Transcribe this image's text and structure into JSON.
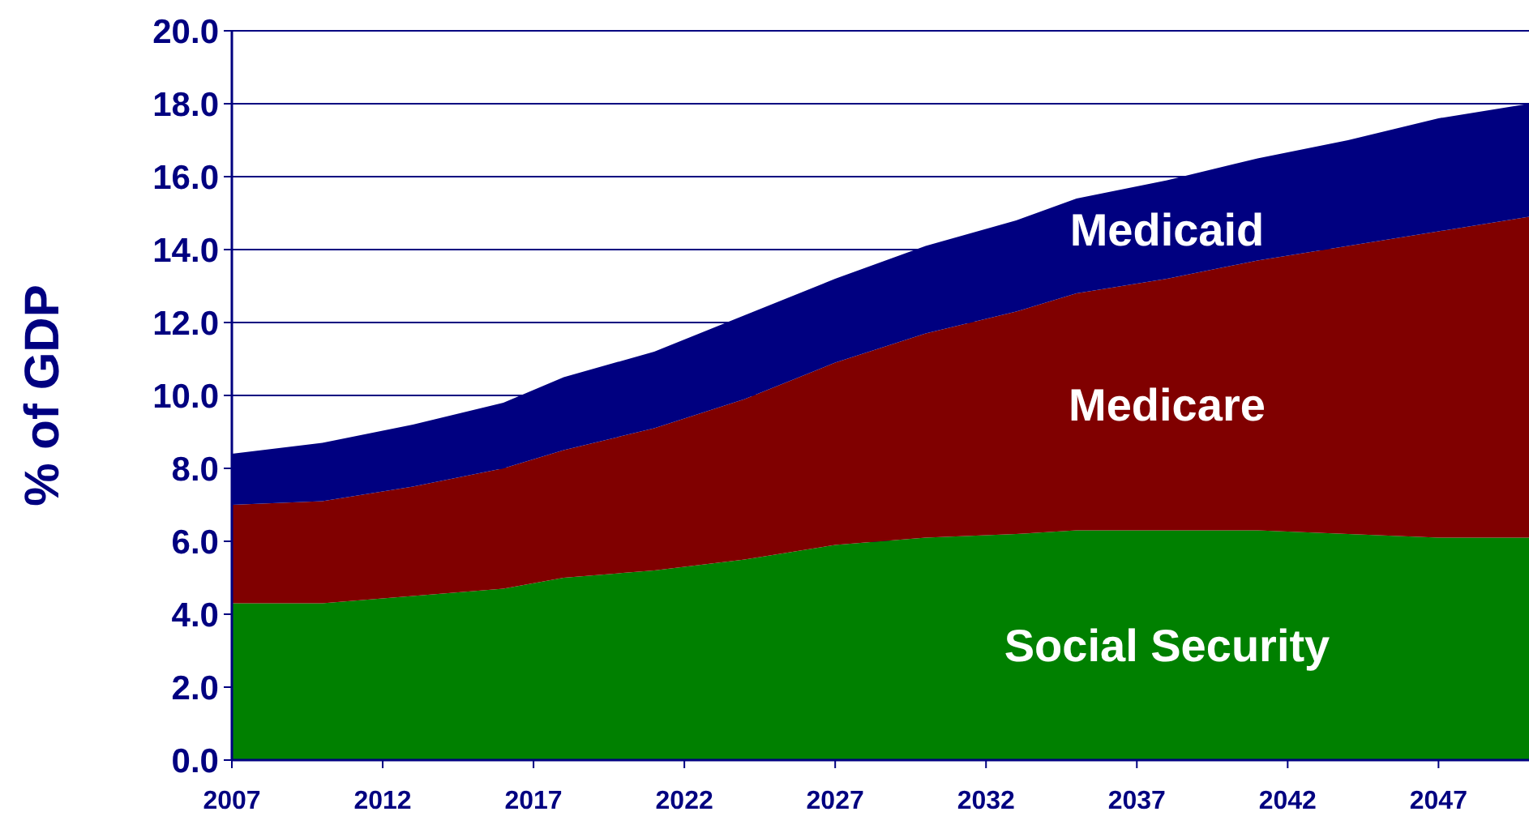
{
  "chart_data": {
    "type": "area",
    "stacked": true,
    "ylabel": "% of GDP",
    "x": [
      2007,
      2010,
      2013,
      2016,
      2018,
      2021,
      2024,
      2027,
      2030,
      2033,
      2035,
      2038,
      2041,
      2044,
      2047,
      2050
    ],
    "series": [
      {
        "name": "Social Security",
        "color": "#008000",
        "values": [
          4.3,
          4.3,
          4.5,
          4.7,
          5.0,
          5.2,
          5.5,
          5.9,
          6.1,
          6.2,
          6.3,
          6.3,
          6.3,
          6.2,
          6.1,
          6.1
        ]
      },
      {
        "name": "Medicare",
        "color": "#800000",
        "values": [
          2.7,
          2.8,
          3.0,
          3.3,
          3.5,
          3.9,
          4.4,
          5.0,
          5.6,
          6.1,
          6.5,
          6.9,
          7.4,
          7.9,
          8.4,
          8.8
        ]
      },
      {
        "name": "Medicaid",
        "color": "#000080",
        "values": [
          1.4,
          1.6,
          1.7,
          1.8,
          2.0,
          2.1,
          2.3,
          2.3,
          2.4,
          2.5,
          2.6,
          2.7,
          2.8,
          2.9,
          3.1,
          3.1
        ]
      }
    ],
    "xlim": [
      2007,
      2050
    ],
    "xticks": [
      2007,
      2012,
      2017,
      2022,
      2027,
      2032,
      2037,
      2042,
      2047
    ],
    "ylim": [
      0,
      20
    ],
    "yticks": [
      {
        "value": 0,
        "label": "0.0"
      },
      {
        "value": 2,
        "label": "2.0"
      },
      {
        "value": 4,
        "label": "4.0"
      },
      {
        "value": 6,
        "label": "6.0"
      },
      {
        "value": 8,
        "label": "8.0"
      },
      {
        "value": 10,
        "label": "10.0"
      },
      {
        "value": 12,
        "label": "12.0"
      },
      {
        "value": 14,
        "label": "14.0"
      },
      {
        "value": 16,
        "label": "16.0"
      },
      {
        "value": 18,
        "label": "18.0"
      },
      {
        "value": 20,
        "label": "20.0"
      }
    ],
    "grid": "y"
  }
}
